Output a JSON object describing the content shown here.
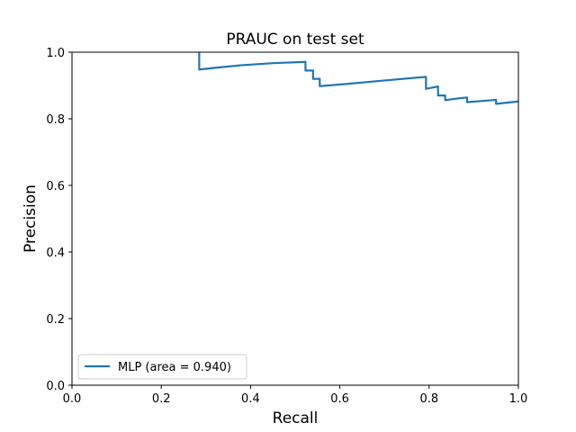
{
  "chart_data": {
    "type": "line",
    "title": "PRAUC on  test set",
    "xlabel": "Recall",
    "ylabel": "Precision",
    "xlim": [
      0.0,
      1.0
    ],
    "ylim": [
      0.0,
      1.0
    ],
    "xticks": [
      "0.0",
      "0.2",
      "0.4",
      "0.6",
      "0.8",
      "1.0"
    ],
    "yticks": [
      "0.0",
      "0.2",
      "0.4",
      "0.6",
      "0.8",
      "1.0"
    ],
    "grid": false,
    "legend_position": "lower-left",
    "series": [
      {
        "name": "MLP (area = 0.940)",
        "color": "#1f77b4",
        "x": [
          0.285,
          0.285,
          0.285,
          0.32,
          0.38,
          0.45,
          0.523,
          0.523,
          0.54,
          0.54,
          0.555,
          0.555,
          0.6,
          0.7,
          0.793,
          0.793,
          0.82,
          0.82,
          0.836,
          0.836,
          0.87,
          0.885,
          0.885,
          0.95,
          0.95,
          1.0
        ],
        "y": [
          1.0,
          0.948,
          0.948,
          0.953,
          0.961,
          0.967,
          0.971,
          0.945,
          0.945,
          0.92,
          0.92,
          0.898,
          0.903,
          0.915,
          0.926,
          0.89,
          0.897,
          0.87,
          0.87,
          0.856,
          0.862,
          0.864,
          0.85,
          0.857,
          0.845,
          0.852
        ]
      }
    ]
  }
}
